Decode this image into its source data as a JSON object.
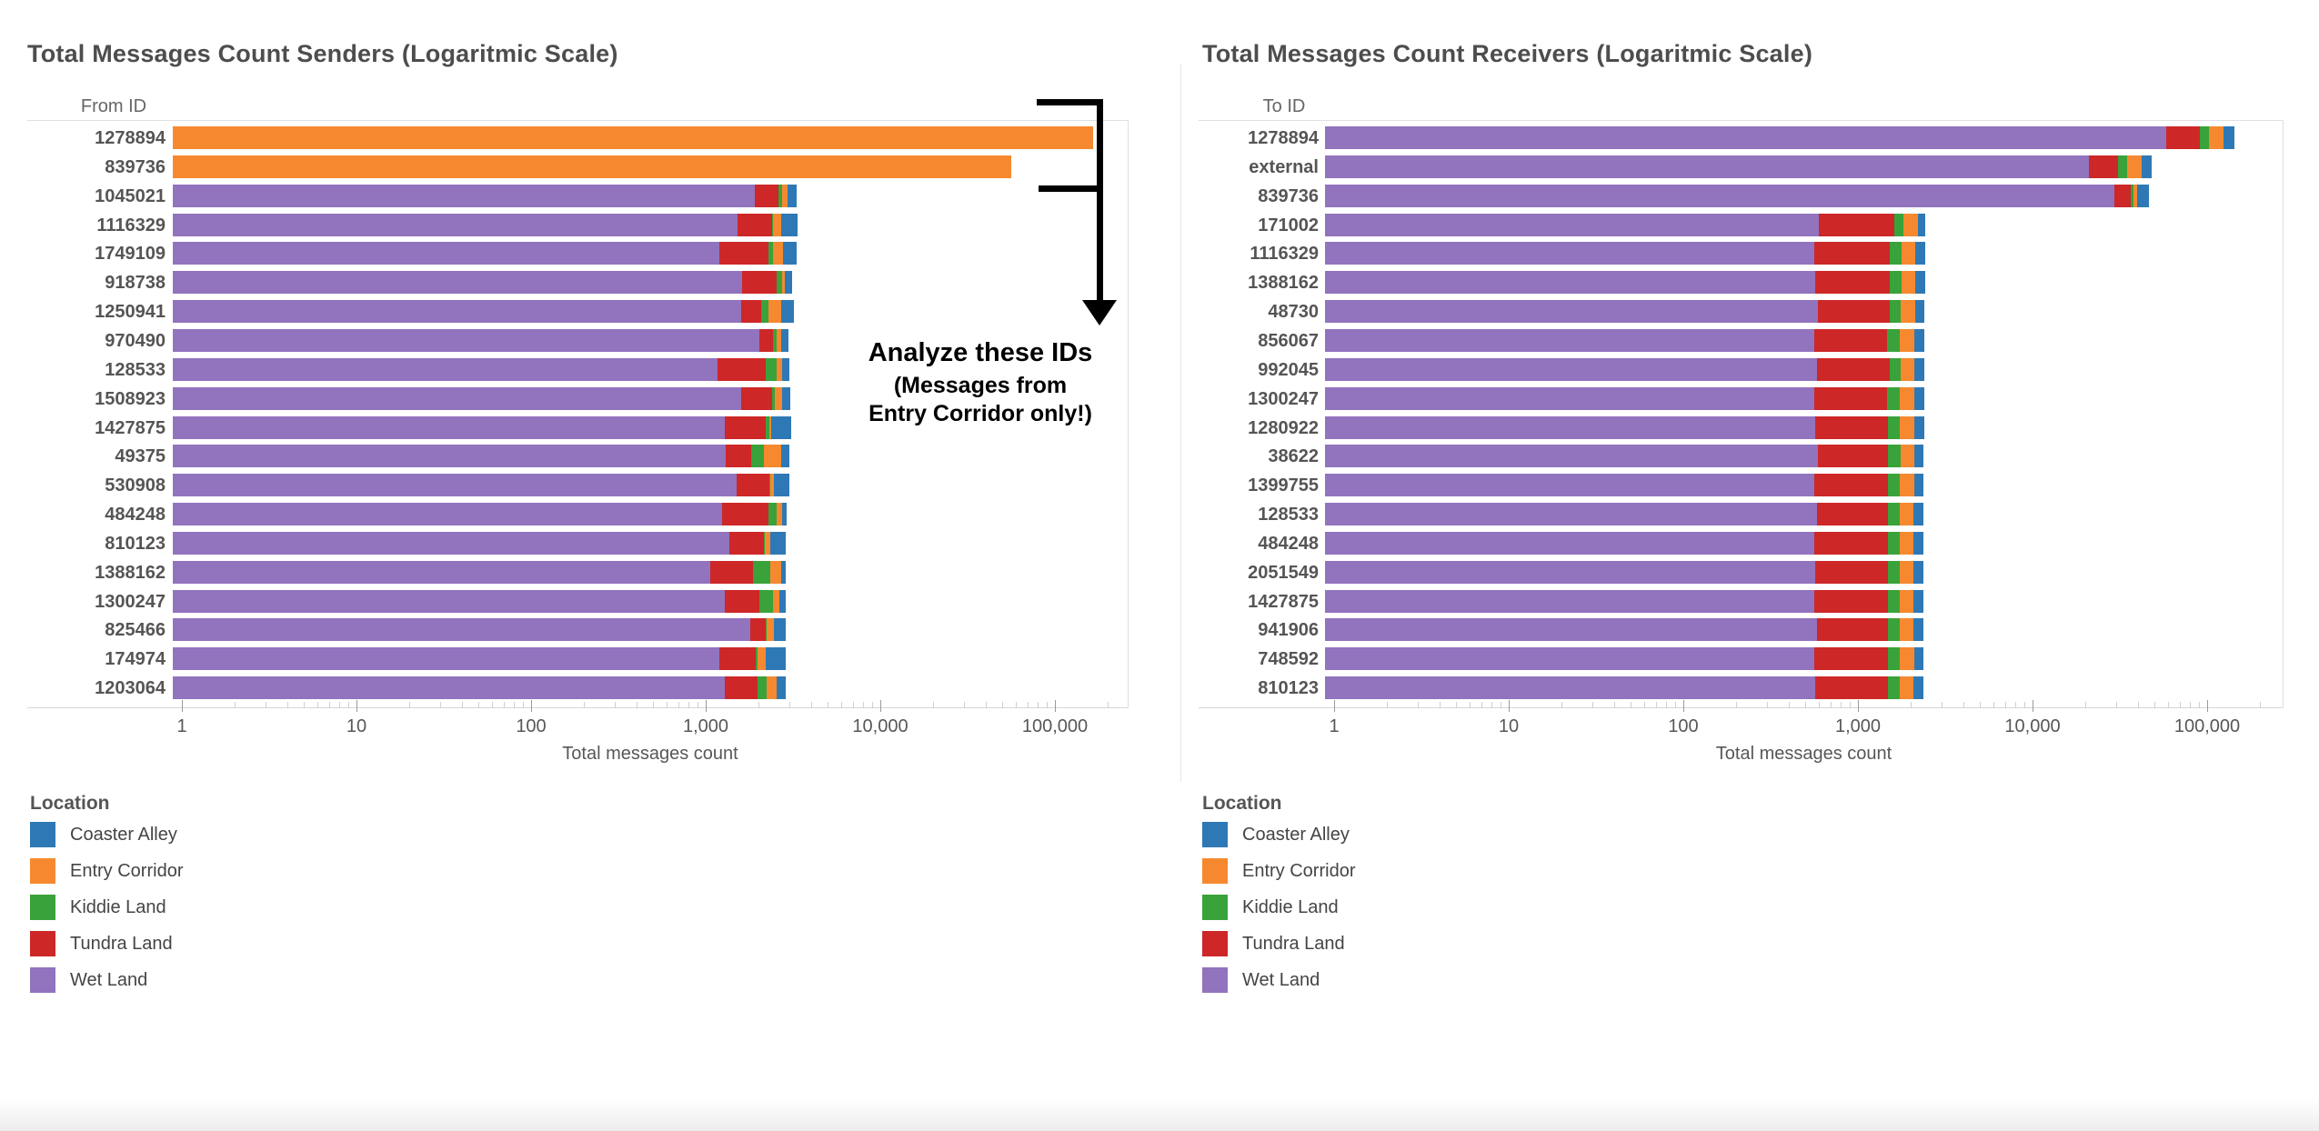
{
  "annotation": {
    "lines": [
      "Analyze these IDs",
      "(Messages from",
      "Entry Corridor only!)"
    ]
  },
  "legend": {
    "title": "Location",
    "items": [
      {
        "label": "Coaster Alley",
        "color": "#2E79B5"
      },
      {
        "label": "Entry Corridor",
        "color": "#F6892F"
      },
      {
        "label": "Kiddie Land",
        "color": "#39A23A"
      },
      {
        "label": "Tundra Land",
        "color": "#CD2727"
      },
      {
        "label": "Wet Land",
        "color": "#9273BE"
      }
    ]
  },
  "chart_data": [
    {
      "type": "bar",
      "orientation": "horizontal",
      "x_scale": "log",
      "title": "Total Messages Count Senders (Logaritmic Scale)",
      "row_header": "From ID",
      "xlabel": "Total messages count",
      "x_tick_labels": [
        "1",
        "10",
        "100",
        "1,000",
        "10,000",
        "100,000"
      ],
      "x_range_log10": [
        0,
        5.45
      ],
      "grid": false,
      "legend_position": "bottom-left",
      "categories": [
        "1278894",
        "839736",
        "1045021",
        "1116329",
        "1749109",
        "918738",
        "1250941",
        "970490",
        "128533",
        "1508923",
        "1427875",
        "49375",
        "530908",
        "484248",
        "810123",
        "1388162",
        "1300247",
        "825466",
        "174974",
        "1203064"
      ],
      "series": [
        {
          "name": "Wet Land",
          "color": "#9273BE",
          "values": [
            0,
            0,
            1900,
            1520,
            1200,
            1620,
            1590,
            2040,
            1170,
            1590,
            1280,
            1300,
            1510,
            1240,
            1370,
            1060,
            1280,
            1790,
            1200,
            1280
          ]
        },
        {
          "name": "Tundra Land",
          "color": "#CD2727",
          "values": [
            0,
            0,
            700,
            870,
            1080,
            920,
            480,
            380,
            1030,
            800,
            920,
            530,
            800,
            1040,
            780,
            810,
            740,
            410,
            730,
            700
          ]
        },
        {
          "name": "Kiddie Land",
          "color": "#39A23A",
          "values": [
            0,
            0,
            140,
            30,
            140,
            200,
            210,
            120,
            340,
            90,
            110,
            320,
            30,
            260,
            30,
            470,
            400,
            30,
            50,
            250
          ]
        },
        {
          "name": "Entry Corridor",
          "color": "#F6892F",
          "values": [
            165000,
            56000,
            210,
            280,
            340,
            110,
            420,
            160,
            200,
            260,
            60,
            550,
            110,
            200,
            160,
            360,
            220,
            220,
            220,
            310
          ]
        },
        {
          "name": "Coaster Alley",
          "color": "#2E79B5",
          "values": [
            0,
            0,
            370,
            660,
            550,
            290,
            500,
            280,
            270,
            300,
            710,
            300,
            580,
            180,
            550,
            160,
            250,
            440,
            660,
            320
          ]
        }
      ]
    },
    {
      "type": "bar",
      "orientation": "horizontal",
      "x_scale": "log",
      "title": "Total Messages Count Receivers (Logaritmic Scale)",
      "row_header": "To ID",
      "xlabel": "Total messages count",
      "x_tick_labels": [
        "1",
        "10",
        "100",
        "1,000",
        "10,000",
        "100,000"
      ],
      "x_range_log10": [
        0,
        5.43
      ],
      "grid": false,
      "legend_position": "bottom-left",
      "categories": [
        "1278894",
        "external",
        "839736",
        "171002",
        "1116329",
        "1388162",
        "48730",
        "856067",
        "992045",
        "1300247",
        "1280922",
        "38622",
        "1399755",
        "128533",
        "484248",
        "2051549",
        "1427875",
        "941906",
        "748592",
        "810123"
      ],
      "series": [
        {
          "name": "Wet Land",
          "color": "#9273BE",
          "values": [
            58000,
            21000,
            29500,
            600,
            560,
            570,
            590,
            560,
            580,
            560,
            570,
            590,
            560,
            580,
            560,
            570,
            560,
            580,
            560,
            570
          ]
        },
        {
          "name": "Tundra Land",
          "color": "#CD2727",
          "values": [
            33000,
            10000,
            7000,
            1020,
            970,
            950,
            930,
            900,
            940,
            910,
            920,
            890,
            930,
            900,
            920,
            910,
            930,
            900,
            920,
            910
          ]
        },
        {
          "name": "Kiddie Land",
          "color": "#39A23A",
          "values": [
            11000,
            4000,
            1500,
            210,
            240,
            260,
            230,
            280,
            240,
            260,
            250,
            270,
            240,
            260,
            250,
            260,
            240,
            260,
            250,
            260
          ]
        },
        {
          "name": "Entry Corridor",
          "color": "#F6892F",
          "values": [
            22000,
            7000,
            1800,
            390,
            350,
            340,
            370,
            360,
            350,
            380,
            360,
            350,
            370,
            350,
            360,
            350,
            360,
            350,
            370,
            350
          ]
        },
        {
          "name": "Coaster Alley",
          "color": "#2E79B5",
          "values": [
            20000,
            6000,
            6700,
            210,
            310,
            300,
            280,
            290,
            280,
            280,
            290,
            280,
            280,
            290,
            280,
            290,
            280,
            280,
            280,
            290
          ]
        }
      ]
    }
  ]
}
